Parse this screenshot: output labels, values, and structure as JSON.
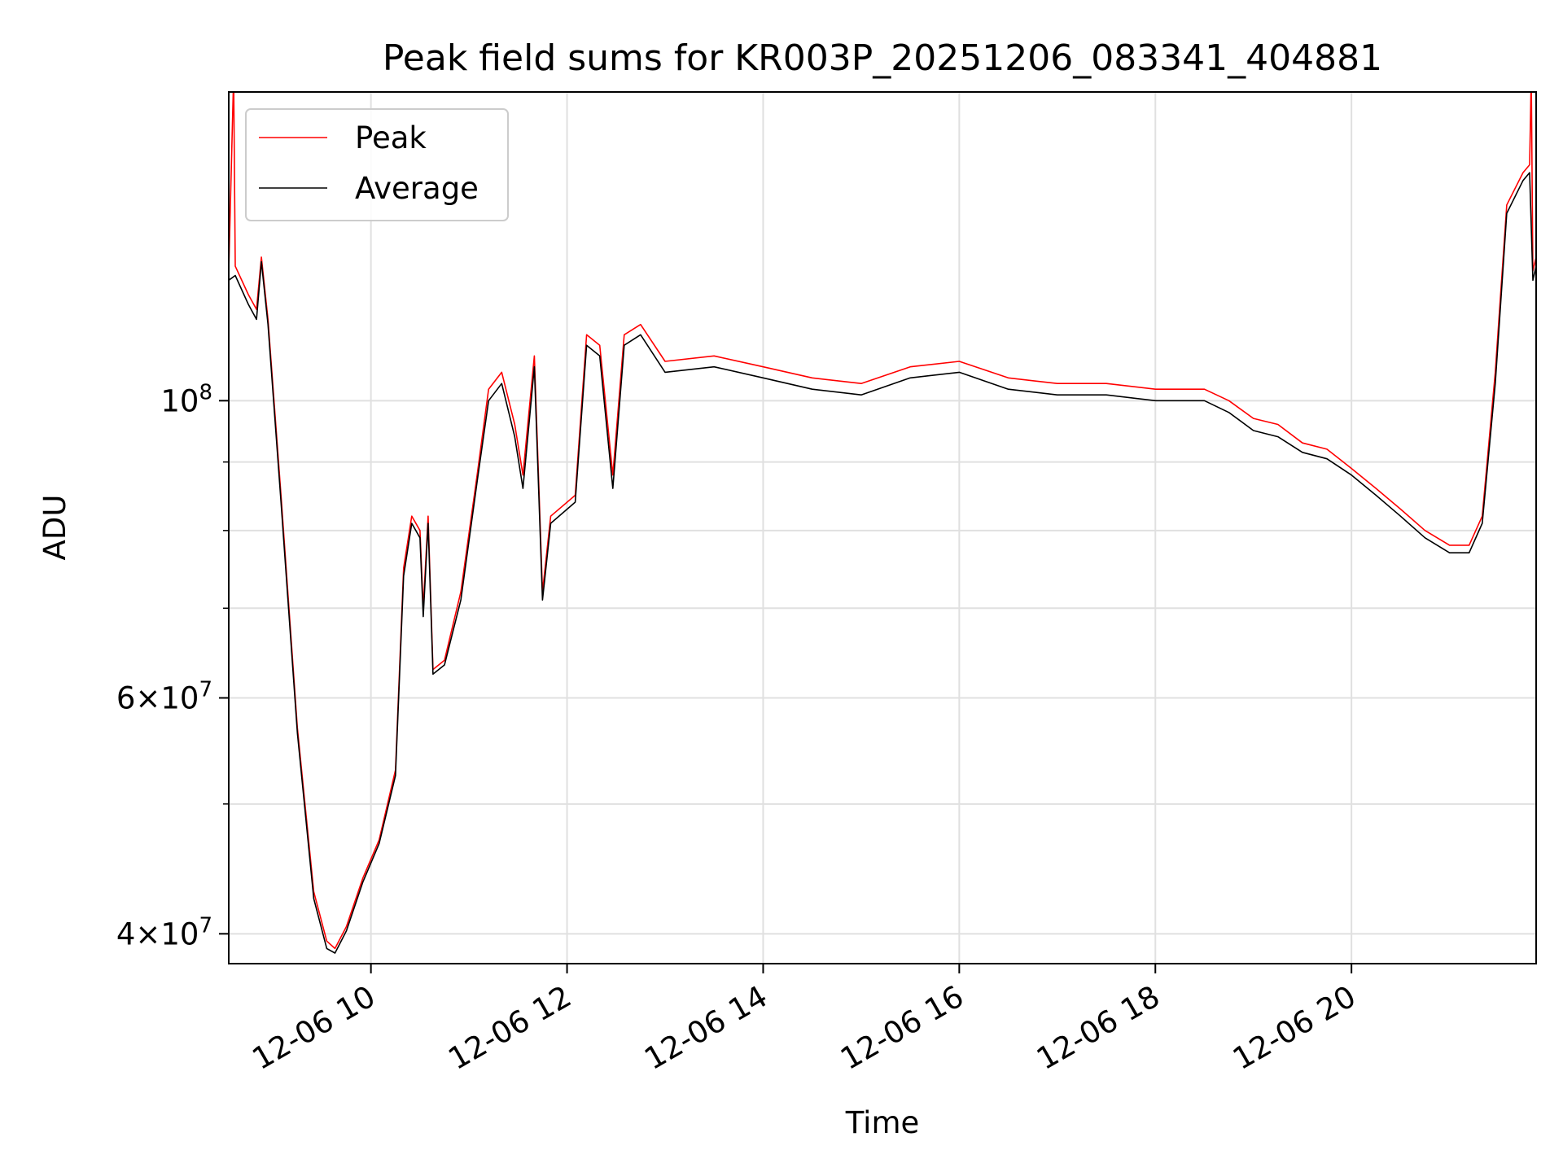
{
  "chart_data": {
    "type": "line",
    "title": "Peak field sums for KR003P_20251206_083341_404881",
    "xlabel": "Time",
    "ylabel": "ADU",
    "x_range": [
      "2025-12-06T08:33",
      "2025-12-06T21:53"
    ],
    "y_scale": "log",
    "y_range": [
      38000000,
      170000000
    ],
    "grid": true,
    "legend_position": "top-left",
    "x_ticks": [
      {
        "time": "2025-12-06T10:00",
        "label": "12-06 10"
      },
      {
        "time": "2025-12-06T12:00",
        "label": "12-06 12"
      },
      {
        "time": "2025-12-06T14:00",
        "label": "12-06 14"
      },
      {
        "time": "2025-12-06T16:00",
        "label": "12-06 16"
      },
      {
        "time": "2025-12-06T18:00",
        "label": "12-06 18"
      },
      {
        "time": "2025-12-06T20:00",
        "label": "12-06 20"
      }
    ],
    "y_ticks": [
      {
        "value": 40000000,
        "mantissa": "4",
        "exponent": "7"
      },
      {
        "value": 60000000,
        "mantissa": "6",
        "exponent": "7"
      },
      {
        "value": 100000000,
        "mantissa": "",
        "exponent": "8"
      }
    ],
    "y_minor_ticks": [
      50000000,
      70000000,
      80000000,
      90000000
    ],
    "series": [
      {
        "name": "Peak",
        "color": "#ff0000",
        "points": [
          [
            "2025-12-06T08:33",
            125000000
          ],
          [
            "2025-12-06T08:36",
            175000000
          ],
          [
            "2025-12-06T08:37",
            126000000
          ],
          [
            "2025-12-06T08:45",
            120000000
          ],
          [
            "2025-12-06T08:50",
            117000000
          ],
          [
            "2025-12-06T08:53",
            128000000
          ],
          [
            "2025-12-06T08:57",
            115000000
          ],
          [
            "2025-12-06T09:05",
            85000000
          ],
          [
            "2025-12-06T09:15",
            57000000
          ],
          [
            "2025-12-06T09:25",
            43000000
          ],
          [
            "2025-12-06T09:33",
            39500000
          ],
          [
            "2025-12-06T09:38",
            39000000
          ],
          [
            "2025-12-06T09:45",
            40500000
          ],
          [
            "2025-12-06T09:55",
            44000000
          ],
          [
            "2025-12-06T10:05",
            47000000
          ],
          [
            "2025-12-06T10:15",
            53000000
          ],
          [
            "2025-12-06T10:20",
            75000000
          ],
          [
            "2025-12-06T10:25",
            82000000
          ],
          [
            "2025-12-06T10:30",
            80000000
          ],
          [
            "2025-12-06T10:32",
            70000000
          ],
          [
            "2025-12-06T10:35",
            82000000
          ],
          [
            "2025-12-06T10:38",
            63000000
          ],
          [
            "2025-12-06T10:45",
            64000000
          ],
          [
            "2025-12-06T10:55",
            72000000
          ],
          [
            "2025-12-06T11:05",
            88000000
          ],
          [
            "2025-12-06T11:12",
            102000000
          ],
          [
            "2025-12-06T11:20",
            105000000
          ],
          [
            "2025-12-06T11:28",
            96000000
          ],
          [
            "2025-12-06T11:33",
            88000000
          ],
          [
            "2025-12-06T11:40",
            108000000
          ],
          [
            "2025-12-06T11:45",
            72000000
          ],
          [
            "2025-12-06T11:50",
            82000000
          ],
          [
            "2025-12-06T12:05",
            85000000
          ],
          [
            "2025-12-06T12:12",
            112000000
          ],
          [
            "2025-12-06T12:20",
            110000000
          ],
          [
            "2025-12-06T12:28",
            88000000
          ],
          [
            "2025-12-06T12:35",
            112000000
          ],
          [
            "2025-12-06T12:45",
            114000000
          ],
          [
            "2025-12-06T13:00",
            107000000
          ],
          [
            "2025-12-06T13:30",
            108000000
          ],
          [
            "2025-12-06T14:00",
            106000000
          ],
          [
            "2025-12-06T14:30",
            104000000
          ],
          [
            "2025-12-06T15:00",
            103000000
          ],
          [
            "2025-12-06T15:30",
            106000000
          ],
          [
            "2025-12-06T16:00",
            107000000
          ],
          [
            "2025-12-06T16:30",
            104000000
          ],
          [
            "2025-12-06T17:00",
            103000000
          ],
          [
            "2025-12-06T17:30",
            103000000
          ],
          [
            "2025-12-06T18:00",
            102000000
          ],
          [
            "2025-12-06T18:30",
            102000000
          ],
          [
            "2025-12-06T18:45",
            100000000
          ],
          [
            "2025-12-06T19:00",
            97000000
          ],
          [
            "2025-12-06T19:15",
            96000000
          ],
          [
            "2025-12-06T19:30",
            93000000
          ],
          [
            "2025-12-06T19:45",
            92000000
          ],
          [
            "2025-12-06T20:00",
            89000000
          ],
          [
            "2025-12-06T20:15",
            86000000
          ],
          [
            "2025-12-06T20:30",
            83000000
          ],
          [
            "2025-12-06T20:45",
            80000000
          ],
          [
            "2025-12-06T21:00",
            78000000
          ],
          [
            "2025-12-06T21:12",
            78000000
          ],
          [
            "2025-12-06T21:20",
            82000000
          ],
          [
            "2025-12-06T21:28",
            105000000
          ],
          [
            "2025-12-06T21:35",
            140000000
          ],
          [
            "2025-12-06T21:45",
            148000000
          ],
          [
            "2025-12-06T21:49",
            150000000
          ],
          [
            "2025-12-06T21:50",
            175000000
          ],
          [
            "2025-12-06T21:51",
            125000000
          ],
          [
            "2025-12-06T21:53",
            128000000
          ]
        ]
      },
      {
        "name": "Average",
        "color": "#000000",
        "points": [
          [
            "2025-12-06T08:33",
            123000000
          ],
          [
            "2025-12-06T08:37",
            124000000
          ],
          [
            "2025-12-06T08:45",
            118000000
          ],
          [
            "2025-12-06T08:50",
            115000000
          ],
          [
            "2025-12-06T08:53",
            127000000
          ],
          [
            "2025-12-06T08:57",
            114000000
          ],
          [
            "2025-12-06T09:05",
            84000000
          ],
          [
            "2025-12-06T09:15",
            56500000
          ],
          [
            "2025-12-06T09:25",
            42500000
          ],
          [
            "2025-12-06T09:33",
            39000000
          ],
          [
            "2025-12-06T09:38",
            38700000
          ],
          [
            "2025-12-06T09:45",
            40200000
          ],
          [
            "2025-12-06T09:55",
            43700000
          ],
          [
            "2025-12-06T10:05",
            46700000
          ],
          [
            "2025-12-06T10:15",
            52500000
          ],
          [
            "2025-12-06T10:20",
            74000000
          ],
          [
            "2025-12-06T10:25",
            81000000
          ],
          [
            "2025-12-06T10:30",
            79000000
          ],
          [
            "2025-12-06T10:32",
            69000000
          ],
          [
            "2025-12-06T10:35",
            81000000
          ],
          [
            "2025-12-06T10:38",
            62500000
          ],
          [
            "2025-12-06T10:45",
            63500000
          ],
          [
            "2025-12-06T10:55",
            71000000
          ],
          [
            "2025-12-06T11:05",
            87000000
          ],
          [
            "2025-12-06T11:12",
            100000000
          ],
          [
            "2025-12-06T11:20",
            103000000
          ],
          [
            "2025-12-06T11:28",
            94000000
          ],
          [
            "2025-12-06T11:33",
            86000000
          ],
          [
            "2025-12-06T11:40",
            106000000
          ],
          [
            "2025-12-06T11:45",
            71000000
          ],
          [
            "2025-12-06T11:50",
            81000000
          ],
          [
            "2025-12-06T12:05",
            84000000
          ],
          [
            "2025-12-06T12:12",
            110000000
          ],
          [
            "2025-12-06T12:20",
            108000000
          ],
          [
            "2025-12-06T12:28",
            86000000
          ],
          [
            "2025-12-06T12:35",
            110000000
          ],
          [
            "2025-12-06T12:45",
            112000000
          ],
          [
            "2025-12-06T13:00",
            105000000
          ],
          [
            "2025-12-06T13:30",
            106000000
          ],
          [
            "2025-12-06T14:00",
            104000000
          ],
          [
            "2025-12-06T14:30",
            102000000
          ],
          [
            "2025-12-06T15:00",
            101000000
          ],
          [
            "2025-12-06T15:30",
            104000000
          ],
          [
            "2025-12-06T16:00",
            105000000
          ],
          [
            "2025-12-06T16:30",
            102000000
          ],
          [
            "2025-12-06T17:00",
            101000000
          ],
          [
            "2025-12-06T17:30",
            101000000
          ],
          [
            "2025-12-06T18:00",
            100000000
          ],
          [
            "2025-12-06T18:30",
            100000000
          ],
          [
            "2025-12-06T18:45",
            98000000
          ],
          [
            "2025-12-06T19:00",
            95000000
          ],
          [
            "2025-12-06T19:15",
            94000000
          ],
          [
            "2025-12-06T19:30",
            91500000
          ],
          [
            "2025-12-06T19:45",
            90500000
          ],
          [
            "2025-12-06T20:00",
            88000000
          ],
          [
            "2025-12-06T20:15",
            85000000
          ],
          [
            "2025-12-06T20:30",
            82000000
          ],
          [
            "2025-12-06T20:45",
            79000000
          ],
          [
            "2025-12-06T21:00",
            77000000
          ],
          [
            "2025-12-06T21:12",
            77000000
          ],
          [
            "2025-12-06T21:20",
            81000000
          ],
          [
            "2025-12-06T21:28",
            103000000
          ],
          [
            "2025-12-06T21:35",
            138000000
          ],
          [
            "2025-12-06T21:45",
            146000000
          ],
          [
            "2025-12-06T21:49",
            148000000
          ],
          [
            "2025-12-06T21:51",
            123000000
          ],
          [
            "2025-12-06T21:53",
            126000000
          ]
        ]
      }
    ]
  }
}
